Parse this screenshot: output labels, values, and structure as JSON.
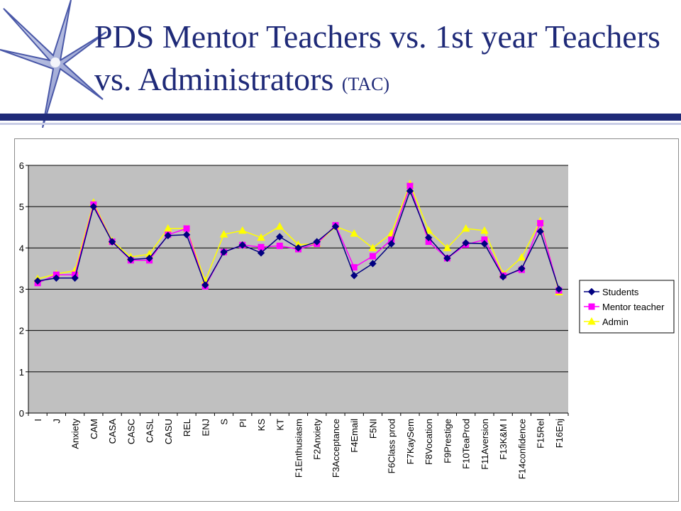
{
  "slide": {
    "title_main": "PDS Mentor Teachers vs. 1st year Teachers vs. Administrators",
    "title_suffix": "(TAC)"
  },
  "colors": {
    "title": "#1f2a78",
    "plot_bg": "#c0c0c0"
  },
  "chart_data": {
    "type": "line",
    "title": "",
    "xlabel": "",
    "ylabel": "",
    "ylim": [
      0,
      6
    ],
    "yticks": [
      0,
      1,
      2,
      3,
      4,
      5,
      6
    ],
    "grid": true,
    "legend_position": "right",
    "categories": [
      "I",
      "J",
      "Anxiety",
      "CAM",
      "CASA",
      "CASC",
      "CASL",
      "CASU",
      "REL",
      "ENJ",
      "S",
      "PI",
      "KS",
      "KT",
      "F1Enthusiasm",
      "F2Anxiety",
      "F3Acceptance",
      "F4Email",
      "F5NI",
      "F6Class prod",
      "F7KaySem",
      "F8Vocation",
      "F9Prestige",
      "F10TeaProd",
      "F11Aversion",
      "F13K&M I",
      "F14confidence",
      "F15Rel",
      "F16Enj"
    ],
    "series": [
      {
        "name": "Students",
        "color": "#000080",
        "marker": "diamond",
        "values": [
          3.2,
          3.27,
          3.27,
          5.0,
          4.15,
          3.72,
          3.75,
          4.3,
          4.32,
          3.1,
          3.9,
          4.07,
          3.88,
          4.27,
          4.0,
          4.15,
          4.52,
          3.33,
          3.62,
          4.1,
          5.38,
          4.25,
          3.75,
          4.12,
          4.1,
          3.3,
          3.5,
          4.4,
          3.0
        ]
      },
      {
        "name": "Mentor teacher",
        "color": "#ff00ff",
        "marker": "square",
        "values": [
          3.15,
          3.35,
          3.35,
          5.05,
          4.15,
          3.7,
          3.7,
          4.32,
          4.47,
          3.07,
          3.9,
          4.07,
          4.02,
          4.05,
          3.97,
          4.1,
          4.55,
          3.53,
          3.8,
          4.2,
          5.5,
          4.15,
          3.75,
          4.08,
          4.2,
          3.33,
          3.47,
          4.6,
          2.97
        ]
      },
      {
        "name": "Admin",
        "color": "#ffff00",
        "marker": "triangle",
        "values": [
          3.25,
          3.37,
          3.45,
          5.1,
          4.17,
          3.78,
          3.85,
          4.47,
          4.47,
          3.2,
          4.33,
          4.42,
          4.25,
          4.52,
          4.08,
          4.1,
          4.52,
          4.35,
          4.0,
          4.35,
          5.55,
          4.42,
          4.0,
          4.47,
          4.42,
          3.37,
          3.77,
          4.65,
          2.93
        ]
      }
    ]
  }
}
